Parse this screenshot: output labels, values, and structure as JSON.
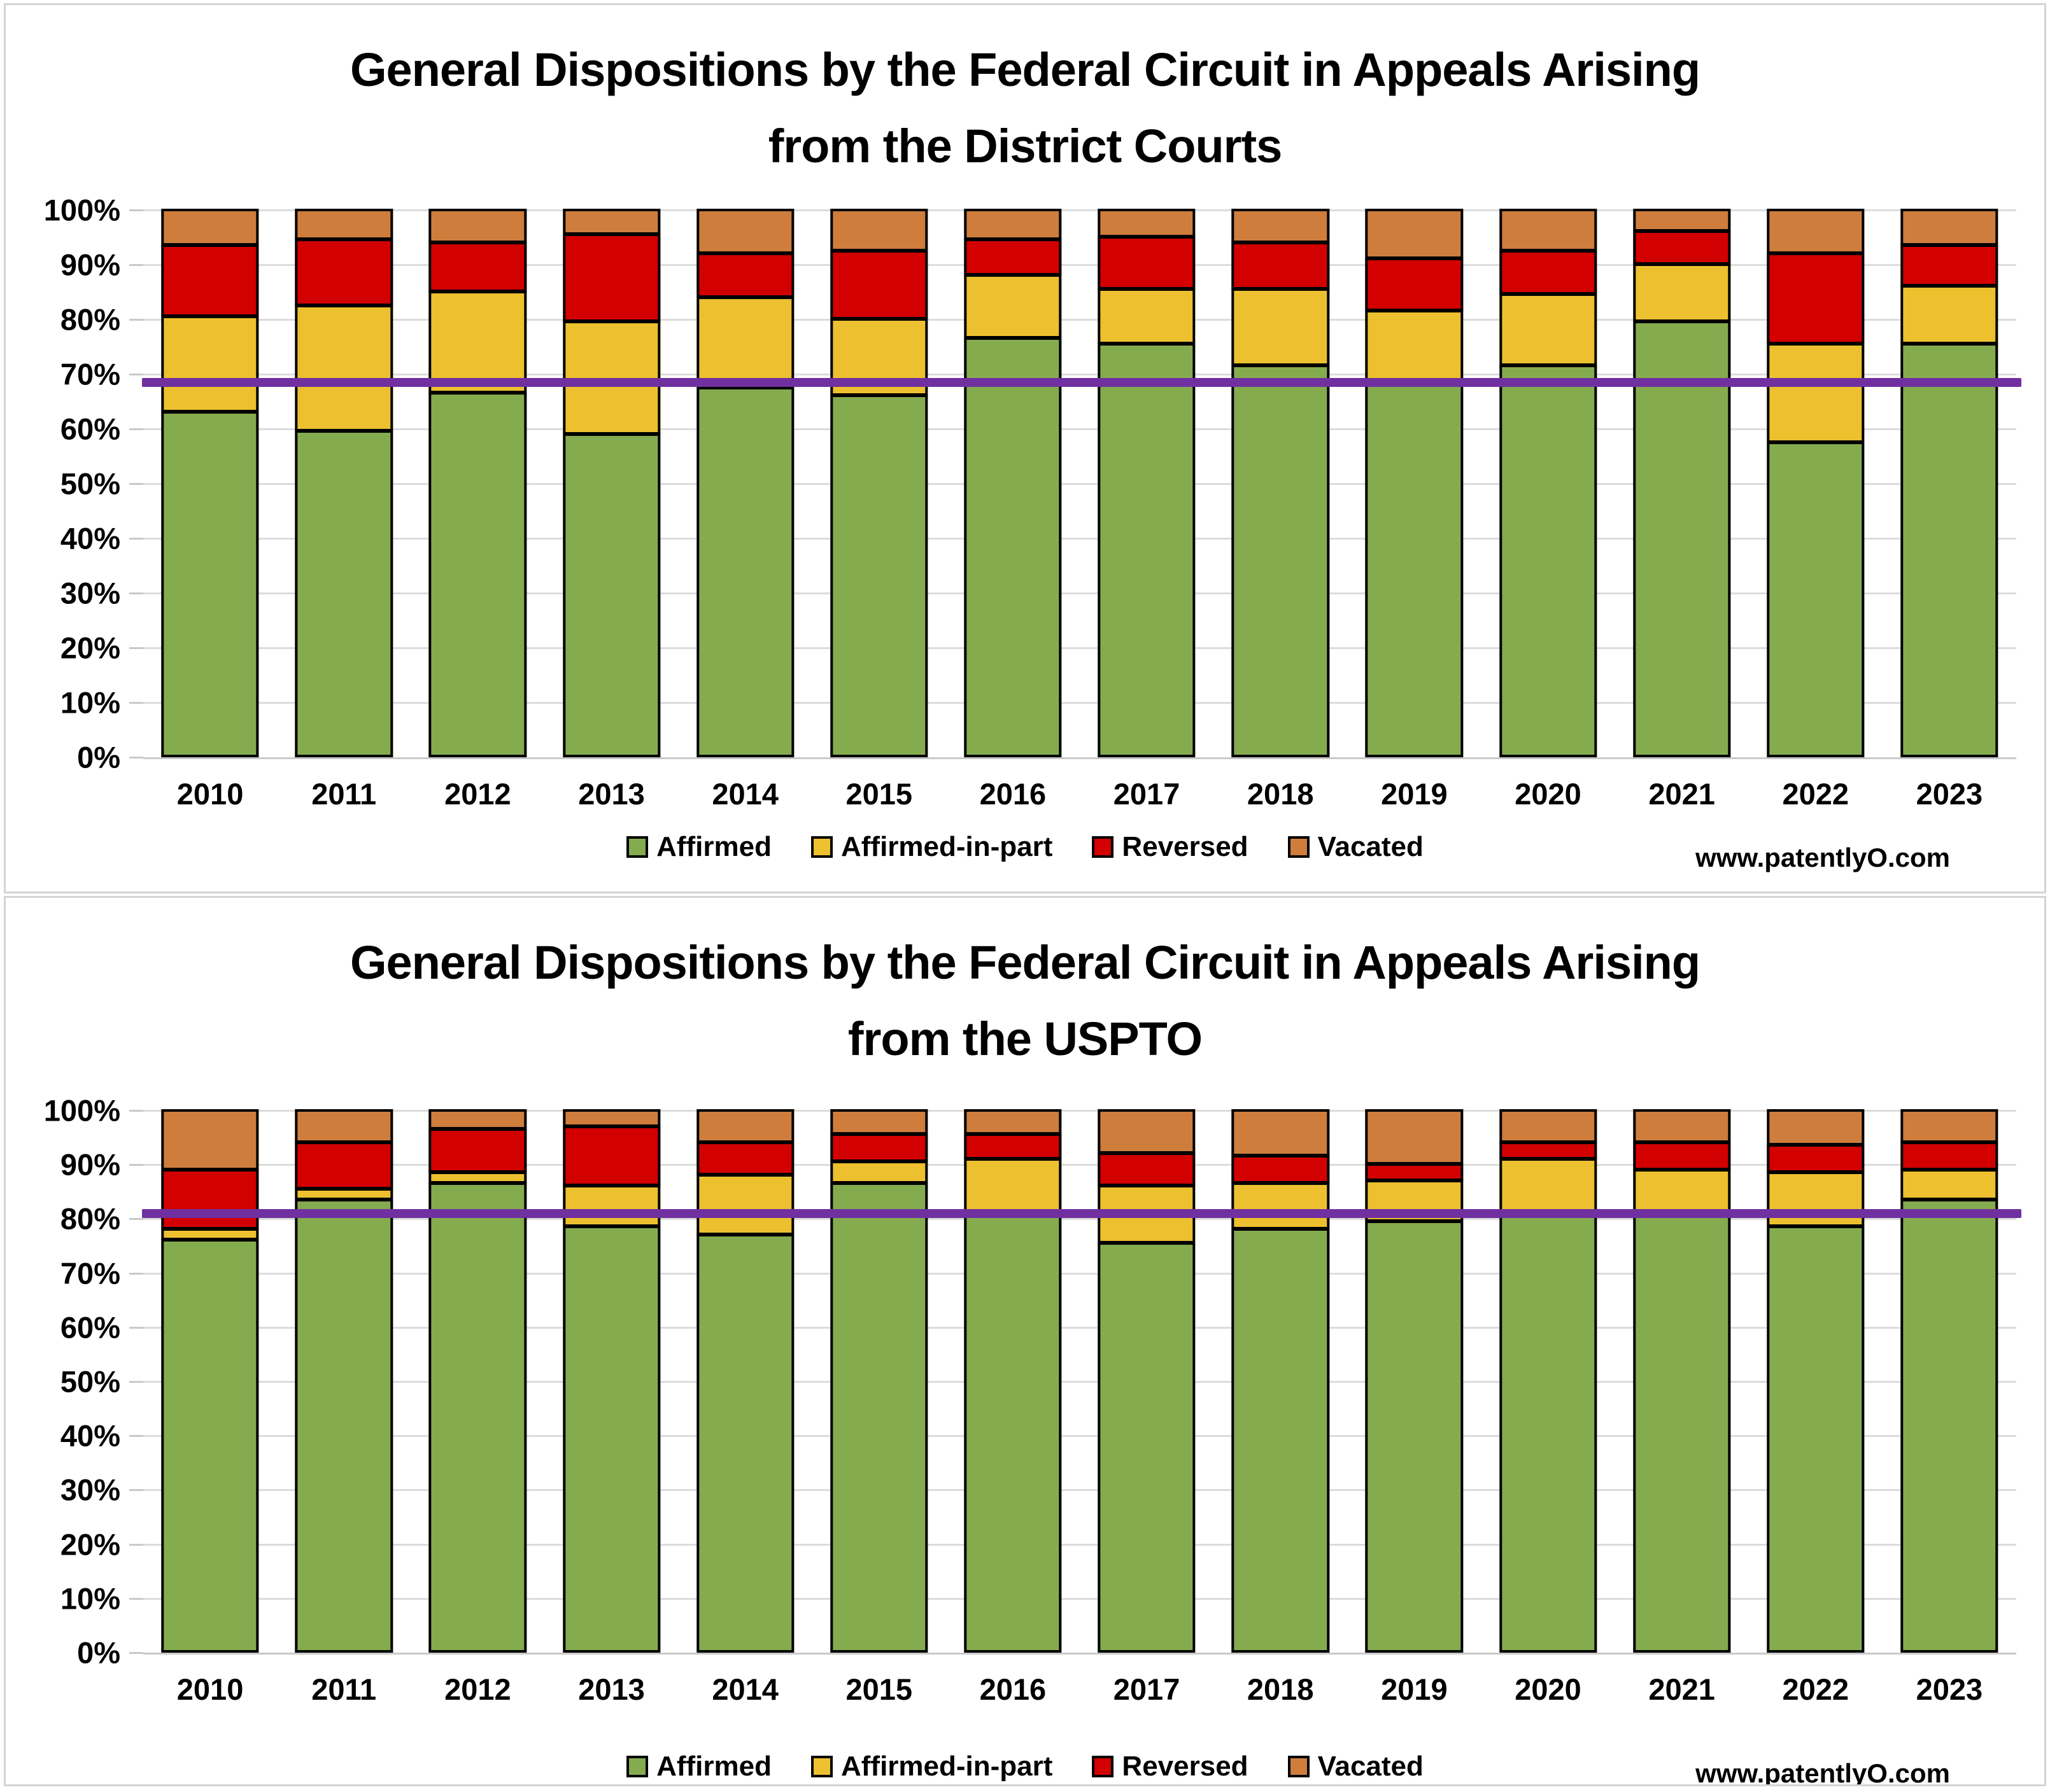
{
  "page": {
    "background": "#ffffff",
    "gridline_color": "#dcdcdc",
    "axis_line_color": "#c9c9c9",
    "bar_border_color": "#000000"
  },
  "y_ticks": [
    "0%",
    "10%",
    "20%",
    "30%",
    "40%",
    "50%",
    "60%",
    "70%",
    "80%",
    "90%",
    "100%"
  ],
  "chart_data": [
    {
      "type": "bar",
      "stacked": true,
      "title_line1": "General Dispositions by the Federal Circuit in Appeals Arising",
      "title_line2": "from the District Courts",
      "attribution": "www.patentlyO.com",
      "xlabel": "",
      "ylabel": "",
      "ylim": [
        0,
        100
      ],
      "grid": true,
      "legend_position": "bottom",
      "categories": [
        "2010",
        "2011",
        "2012",
        "2013",
        "2014",
        "2015",
        "2016",
        "2017",
        "2018",
        "2019",
        "2020",
        "2021",
        "2022",
        "2023"
      ],
      "series": [
        {
          "name": "Affirmed",
          "color": "#85AB4F",
          "values": [
            63,
            59.5,
            66.5,
            59,
            67.5,
            66,
            76.5,
            75.5,
            71.5,
            68,
            71.5,
            79.5,
            57.5,
            75.5
          ]
        },
        {
          "name": "Affirmed-in-part",
          "color": "#EDC02F",
          "values": [
            17.5,
            23,
            18.5,
            20.5,
            16.5,
            14,
            11.5,
            10,
            14,
            13.5,
            13,
            10.5,
            18,
            10.5
          ]
        },
        {
          "name": "Reversed",
          "color": "#D20000",
          "values": [
            13,
            12,
            9,
            16,
            8,
            12.5,
            6.5,
            9.5,
            8.5,
            9.5,
            8,
            6,
            16.5,
            7.5
          ]
        },
        {
          "name": "Vacated",
          "color": "#CE7D3D",
          "values": [
            6.5,
            5.5,
            6,
            4.5,
            8,
            7.5,
            5.5,
            5,
            6,
            9,
            7.5,
            4,
            8,
            6.5
          ]
        }
      ],
      "average_line": {
        "value": 68.5,
        "color": "#7030A0",
        "meaning": "overall affirmance-level reference line"
      }
    },
    {
      "type": "bar",
      "stacked": true,
      "title_line1": "General Dispositions by the Federal Circuit in Appeals Arising",
      "title_line2": "from the USPTO",
      "attribution": "www.patentlyO.com",
      "xlabel": "",
      "ylabel": "",
      "ylim": [
        0,
        100
      ],
      "grid": true,
      "legend_position": "bottom",
      "categories": [
        "2010",
        "2011",
        "2012",
        "2013",
        "2014",
        "2015",
        "2016",
        "2017",
        "2018",
        "2019",
        "2020",
        "2021",
        "2022",
        "2023"
      ],
      "series": [
        {
          "name": "Affirmed",
          "color": "#85AB4F",
          "values": [
            76,
            83.5,
            86.5,
            78.5,
            77,
            86.5,
            80.5,
            75.5,
            78,
            79.5,
            81,
            80.5,
            78.5,
            83.5
          ]
        },
        {
          "name": "Affirmed-in-part",
          "color": "#EDC02F",
          "values": [
            2,
            2,
            2,
            7.5,
            11,
            4,
            10.5,
            10.5,
            8.5,
            7.5,
            10,
            8.5,
            10,
            5.5
          ]
        },
        {
          "name": "Reversed",
          "color": "#D20000",
          "values": [
            11,
            8.5,
            8,
            11,
            6,
            5,
            4.5,
            6,
            5,
            3,
            3,
            5,
            5,
            5
          ]
        },
        {
          "name": "Vacated",
          "color": "#CE7D3D",
          "values": [
            11,
            6,
            3.5,
            3,
            6,
            4.5,
            4.5,
            8,
            8.5,
            10,
            6,
            6,
            6.5,
            6
          ]
        }
      ],
      "average_line": {
        "value": 81,
        "color": "#7030A0",
        "meaning": "overall affirmance-level reference line"
      }
    }
  ]
}
